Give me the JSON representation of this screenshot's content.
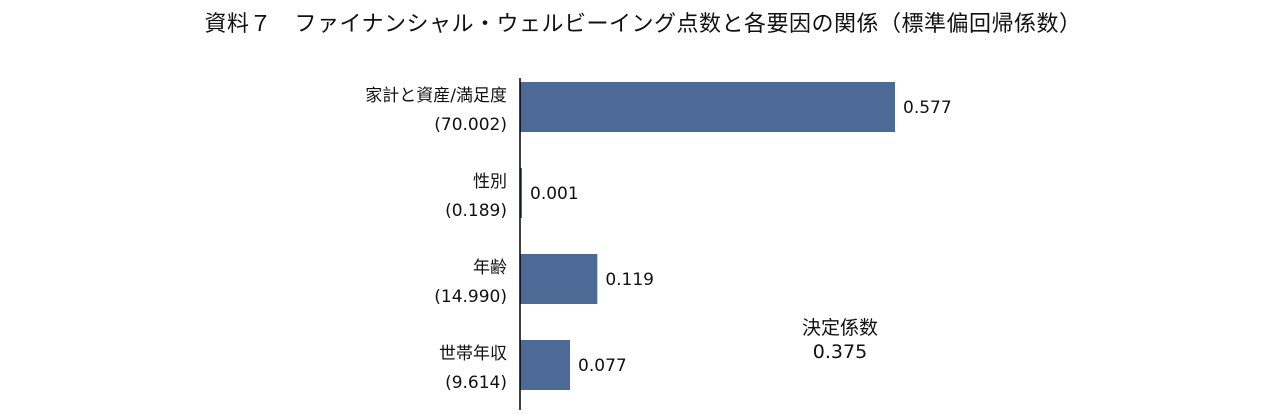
{
  "title": "資料７　ファイナンシャル・ウェルビーイング点数と各要因の関係（標準偏回帰係数）",
  "colors": {
    "bar": "#4d6a96",
    "axis": "#000000"
  },
  "chart_data": {
    "type": "bar",
    "orientation": "horizontal",
    "title": "資料７　ファイナンシャル・ウェルビーイング点数と各要因の関係（標準偏回帰係数）",
    "xlabel": "",
    "ylabel": "",
    "xlim": [
      0,
      0.6
    ],
    "grid": false,
    "categories": [
      "家計と資産/満足度",
      "性別",
      "年齢",
      "世帯年収"
    ],
    "category_sublabels": [
      "(70.002)",
      "(0.189)",
      "(14.990)",
      "(9.614)"
    ],
    "values": [
      0.577,
      0.001,
      0.119,
      0.077
    ],
    "value_labels": [
      "0.577",
      "0.001",
      "0.119",
      "0.077"
    ]
  },
  "r_squared": {
    "label": "決定係数",
    "value": "0.375"
  }
}
